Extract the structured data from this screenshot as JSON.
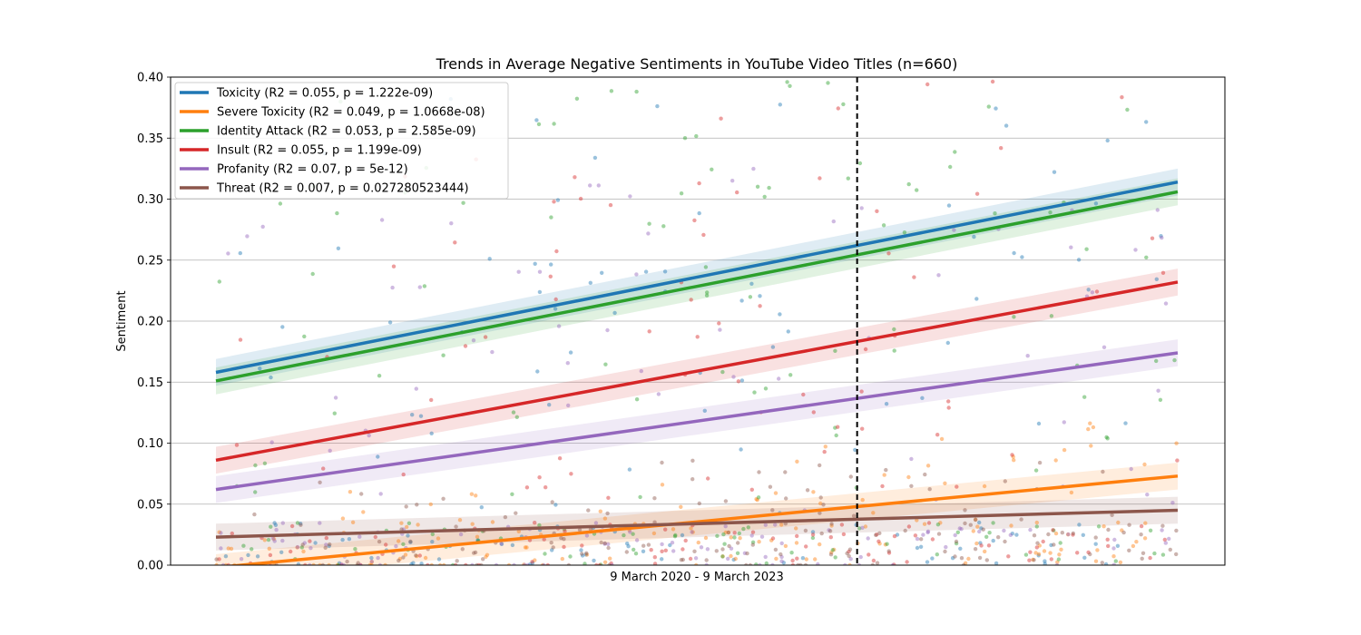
{
  "chart_data": {
    "type": "scatter",
    "title": "Trends in Average Negative Sentiments in YouTube Video Titles (n=660)",
    "xlabel": "9 March 2020 - 9 March 2023",
    "ylabel": "Sentiment",
    "ylim": [
      0.0,
      0.4
    ],
    "yticks": [
      "0.00",
      "0.05",
      "0.10",
      "0.15",
      "0.20",
      "0.25",
      "0.30",
      "0.35",
      "0.40"
    ],
    "xlim": [
      "2020-03-09",
      "2023-03-09"
    ],
    "grid": "horizontal",
    "legend_position": "top-left",
    "vertical_marker": {
      "x": "2022-03-09",
      "style": "dashed"
    },
    "series": [
      {
        "name": "Toxicity (R2 = 0.055, p = 1.222e-09)",
        "color": "#1f77b4",
        "trend_start": 0.158,
        "trend_end": 0.314
      },
      {
        "name": "Severe Toxicity (R2 = 0.049, p = 1.0668e-08)",
        "color": "#ff7f0e",
        "trend_start": -0.002,
        "trend_end": 0.073
      },
      {
        "name": "Identity Attack (R2 = 0.053, p = 2.585e-09)",
        "color": "#2ca02c",
        "trend_start": 0.151,
        "trend_end": 0.306
      },
      {
        "name": "Insult (R2 = 0.055, p = 1.199e-09)",
        "color": "#d62728",
        "trend_start": 0.086,
        "trend_end": 0.232
      },
      {
        "name": "Profanity (R2 = 0.07, p = 5e-12)",
        "color": "#9467bd",
        "trend_start": 0.062,
        "trend_end": 0.174
      },
      {
        "name": "Threat (R2 = 0.007, p = 0.027280523444)",
        "color": "#8c564b",
        "trend_start": 0.023,
        "trend_end": 0.045
      }
    ]
  }
}
